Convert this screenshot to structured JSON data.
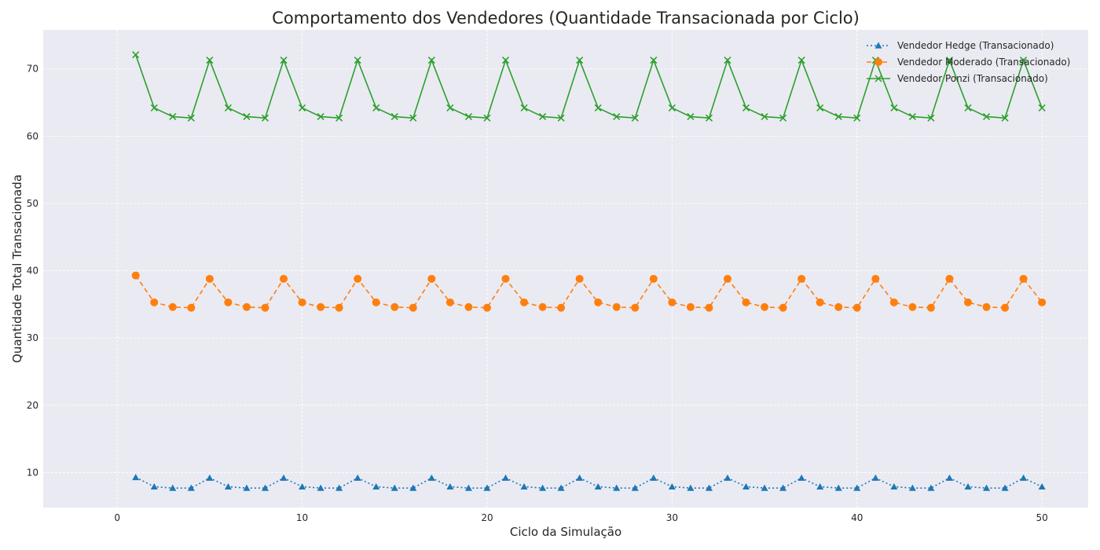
{
  "chart_data": {
    "type": "line",
    "title": "Comportamento dos Vendedores (Quantidade Transacionada por Ciclo)",
    "xlabel": "Ciclo da Simulação",
    "ylabel": "Quantidade Total Transacionada",
    "xlim": [
      -4,
      52.5
    ],
    "ylim": [
      4.8,
      75.8
    ],
    "xticks": [
      0,
      10,
      20,
      30,
      40,
      50
    ],
    "yticks": [
      10,
      20,
      30,
      40,
      50,
      60,
      70
    ],
    "grid": true,
    "legend_position": "top-right",
    "x": [
      1,
      2,
      3,
      4,
      5,
      6,
      7,
      8,
      9,
      10,
      11,
      12,
      13,
      14,
      15,
      16,
      17,
      18,
      19,
      20,
      21,
      22,
      23,
      24,
      25,
      26,
      27,
      28,
      29,
      30,
      31,
      32,
      33,
      34,
      35,
      36,
      37,
      38,
      39,
      40,
      41,
      42,
      43,
      44,
      45,
      46,
      47,
      48,
      49,
      50
    ],
    "series": [
      {
        "name": "Vendedor Hedge (Transacionado)",
        "color": "#1f77b4",
        "linestyle": "dotted",
        "marker": "triangle",
        "values": [
          9.3,
          7.9,
          7.7,
          7.7,
          9.2,
          7.9,
          7.7,
          7.7,
          9.2,
          7.9,
          7.7,
          7.7,
          9.2,
          7.9,
          7.7,
          7.7,
          9.2,
          7.9,
          7.7,
          7.7,
          9.2,
          7.9,
          7.7,
          7.7,
          9.2,
          7.9,
          7.7,
          7.7,
          9.2,
          7.9,
          7.7,
          7.7,
          9.2,
          7.9,
          7.7,
          7.7,
          9.2,
          7.9,
          7.7,
          7.7,
          9.2,
          7.9,
          7.7,
          7.7,
          9.2,
          7.9,
          7.7,
          7.7,
          9.2,
          7.9
        ]
      },
      {
        "name": "Vendedor Moderado (Transacionado)",
        "color": "#ff7f0e",
        "linestyle": "dashed",
        "marker": "circle",
        "values": [
          39.3,
          35.3,
          34.6,
          34.5,
          38.8,
          35.3,
          34.6,
          34.5,
          38.8,
          35.3,
          34.6,
          34.5,
          38.8,
          35.3,
          34.6,
          34.5,
          38.8,
          35.3,
          34.6,
          34.5,
          38.8,
          35.3,
          34.6,
          34.5,
          38.8,
          35.3,
          34.6,
          34.5,
          38.8,
          35.3,
          34.6,
          34.5,
          38.8,
          35.3,
          34.6,
          34.5,
          38.8,
          35.3,
          34.6,
          34.5,
          38.8,
          35.3,
          34.6,
          34.5,
          38.8,
          35.3,
          34.6,
          34.5,
          38.8,
          35.3
        ]
      },
      {
        "name": "Vendedor Ponzi (Transacionado)",
        "color": "#2ca02c",
        "linestyle": "solid",
        "marker": "x",
        "values": [
          72.1,
          64.2,
          62.9,
          62.7,
          71.3,
          64.2,
          62.9,
          62.7,
          71.3,
          64.2,
          62.9,
          62.7,
          71.3,
          64.2,
          62.9,
          62.7,
          71.3,
          64.2,
          62.9,
          62.7,
          71.3,
          64.2,
          62.9,
          62.7,
          71.3,
          64.2,
          62.9,
          62.7,
          71.3,
          64.2,
          62.9,
          62.7,
          71.3,
          64.2,
          62.9,
          62.7,
          71.3,
          64.2,
          62.9,
          62.7,
          71.3,
          64.2,
          62.9,
          62.7,
          71.3,
          64.2,
          62.9,
          62.7,
          71.3,
          64.2
        ]
      }
    ]
  }
}
